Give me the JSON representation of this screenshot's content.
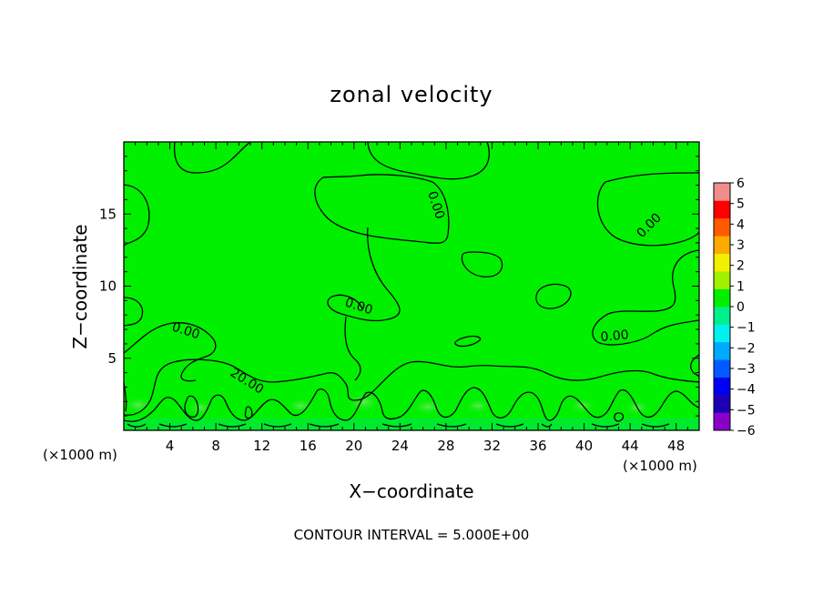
{
  "chart_data": {
    "type": "heatmap",
    "title": "zonal velocity",
    "xlabel": "X−coordinate",
    "ylabel": "Z−coordinate",
    "x_unit": "(×1000 m)",
    "x_unit_right": "(×1000 m)",
    "xlim": [
      0,
      50
    ],
    "ylim": [
      0,
      20
    ],
    "xticks": [
      4,
      8,
      12,
      16,
      20,
      24,
      28,
      32,
      36,
      40,
      44,
      48
    ],
    "yticks": [
      5,
      10,
      15
    ],
    "contour_interval_label": "CONTOUR INTERVAL = 5.000E+00",
    "contour_labels": [
      "0.00",
      "0.00",
      "0.00",
      "0.00",
      "0.00",
      "0.00",
      "20.00"
    ],
    "colorbar": {
      "ticks": [
        "6",
        "5",
        "4",
        "3",
        "2",
        "1",
        "0",
        "−1",
        "−2",
        "−3",
        "−4",
        "−5",
        "−6"
      ],
      "levels": [
        -6,
        -5,
        -4,
        -3,
        -2,
        -1,
        0,
        1,
        2,
        3,
        4,
        5,
        6
      ],
      "colors": [
        "#8a00c8",
        "#1e00b4",
        "#0000f0",
        "#005aff",
        "#00aaff",
        "#00f0f0",
        "#00f08c",
        "#00f000",
        "#a0f000",
        "#f0f000",
        "#ffaa00",
        "#ff5a00",
        "#ff0000",
        "#f08c8c"
      ]
    },
    "field_color": "#00f000"
  }
}
